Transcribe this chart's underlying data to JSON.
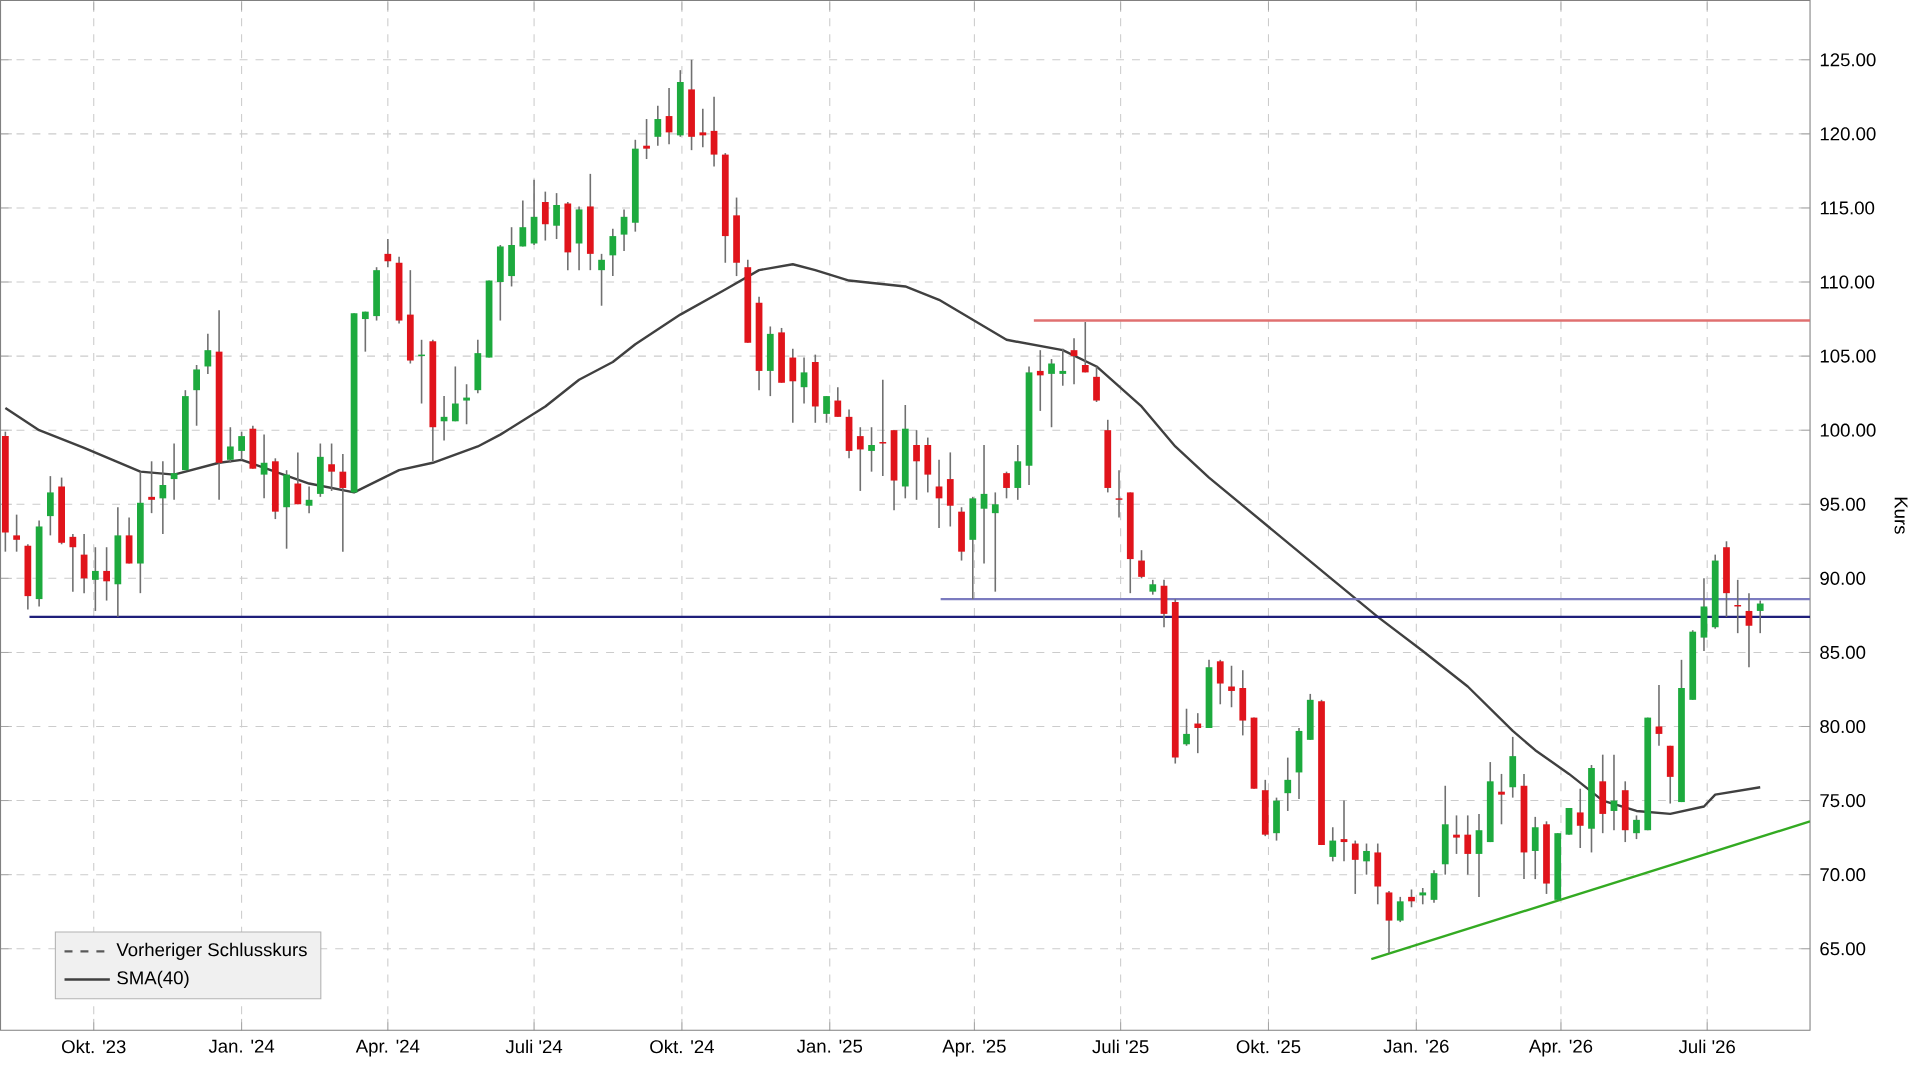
{
  "chart_data": {
    "type": "candlestick",
    "x": [
      "2023-08-07",
      "2023-08-14",
      "2023-08-21",
      "2023-08-28",
      "2023-09-04",
      "2023-09-11",
      "2023-09-18",
      "2023-09-25",
      "2023-10-02",
      "2023-10-09",
      "2023-10-16",
      "2023-10-23",
      "2023-10-30",
      "2023-11-06",
      "2023-11-13",
      "2023-11-20",
      "2023-11-27",
      "2023-12-04",
      "2023-12-11",
      "2023-12-18",
      "2023-12-25",
      "2024-01-01",
      "2024-01-08",
      "2024-01-15",
      "2024-01-22",
      "2024-01-29",
      "2024-02-05",
      "2024-02-12",
      "2024-02-19",
      "2024-02-26",
      "2024-03-04",
      "2024-03-11",
      "2024-03-18",
      "2024-03-25",
      "2024-04-01",
      "2024-04-08",
      "2024-04-15",
      "2024-04-22",
      "2024-04-29",
      "2024-05-06",
      "2024-05-13",
      "2024-05-20",
      "2024-05-27",
      "2024-06-03",
      "2024-06-10",
      "2024-06-17",
      "2024-06-24",
      "2024-07-01",
      "2024-07-08",
      "2024-07-15",
      "2024-07-22",
      "2024-07-29",
      "2024-08-05",
      "2024-08-12",
      "2024-08-19",
      "2024-08-26",
      "2024-09-02",
      "2024-09-09",
      "2024-09-16",
      "2024-09-23",
      "2024-09-30",
      "2024-10-07",
      "2024-10-14",
      "2024-10-21",
      "2024-10-28",
      "2024-11-04",
      "2024-11-11",
      "2024-11-18",
      "2024-11-25",
      "2024-12-02",
      "2024-12-09",
      "2024-12-16",
      "2024-12-23",
      "2024-12-30",
      "2025-01-06",
      "2025-01-13",
      "2025-01-20",
      "2025-01-27",
      "2025-02-03",
      "2025-02-10",
      "2025-02-17",
      "2025-02-24",
      "2025-03-03",
      "2025-03-10",
      "2025-03-17",
      "2025-03-24",
      "2025-03-31",
      "2025-04-07",
      "2025-04-14",
      "2025-04-21",
      "2025-04-28",
      "2025-05-05",
      "2025-05-12",
      "2025-05-19",
      "2025-05-26",
      "2025-06-02",
      "2025-06-09",
      "2025-06-16",
      "2025-06-23",
      "2025-06-30",
      "2025-07-07",
      "2025-07-14",
      "2025-07-21",
      "2025-07-28",
      "2025-08-04",
      "2025-08-11",
      "2025-08-18",
      "2025-08-25",
      "2025-09-01",
      "2025-09-08",
      "2025-09-15",
      "2025-09-22",
      "2025-09-29",
      "2025-10-06",
      "2025-10-13",
      "2025-10-20",
      "2025-10-27",
      "2025-11-03",
      "2025-11-10",
      "2025-11-17",
      "2025-11-24",
      "2025-12-01",
      "2025-12-08",
      "2025-12-15",
      "2025-12-22",
      "2025-12-29",
      "2026-01-05",
      "2026-01-12",
      "2026-01-19",
      "2026-01-26",
      "2026-02-02",
      "2026-02-09",
      "2026-02-16",
      "2026-02-23",
      "2026-03-02",
      "2026-03-09",
      "2026-03-16",
      "2026-03-23",
      "2026-03-30",
      "2026-04-06",
      "2026-04-13",
      "2026-04-20",
      "2026-04-27",
      "2026-05-04",
      "2026-05-11",
      "2026-05-18",
      "2026-05-25",
      "2026-06-01",
      "2026-06-08",
      "2026-06-15",
      "2026-06-22",
      "2026-06-29",
      "2026-07-06",
      "2026-07-13",
      "2026-07-20",
      "2026-07-27",
      "2026-08-03"
    ],
    "ohlc": [
      [
        99.6,
        99.9,
        91.8,
        93.1
      ],
      [
        92.9,
        94.3,
        91.8,
        92.6
      ],
      [
        92.2,
        92.3,
        87.9,
        88.8
      ],
      [
        88.6,
        93.9,
        88.1,
        93.5
      ],
      [
        94.2,
        96.9,
        92.9,
        95.8
      ],
      [
        96.2,
        96.8,
        92.3,
        92.4
      ],
      [
        92.8,
        93.0,
        89.1,
        92.1
      ],
      [
        91.6,
        93.0,
        89.0,
        90.0
      ],
      [
        89.9,
        92.1,
        87.8,
        90.5
      ],
      [
        90.5,
        92.1,
        88.5,
        89.8
      ],
      [
        89.6,
        94.8,
        87.4,
        92.9
      ],
      [
        92.9,
        94.1,
        91.0,
        91.0
      ],
      [
        91.0,
        97.2,
        89.0,
        95.1
      ],
      [
        95.5,
        97.9,
        94.4,
        95.3
      ],
      [
        95.4,
        97.9,
        93.0,
        96.3
      ],
      [
        96.7,
        99.1,
        95.3,
        97.1
      ],
      [
        97.3,
        102.7,
        97.3,
        102.3
      ],
      [
        102.7,
        104.4,
        100.3,
        104.1
      ],
      [
        104.3,
        106.5,
        103.8,
        105.4
      ],
      [
        105.3,
        108.1,
        95.3,
        97.8
      ],
      [
        98.0,
        100.2,
        97.8,
        98.9
      ],
      [
        98.6,
        99.9,
        98.0,
        99.6
      ],
      [
        100.1,
        100.3,
        97.4,
        97.4
      ],
      [
        97.0,
        99.7,
        95.4,
        97.8
      ],
      [
        97.9,
        98.1,
        94.0,
        94.5
      ],
      [
        94.8,
        97.3,
        92.0,
        97.0
      ],
      [
        96.4,
        98.5,
        95.0,
        95.0
      ],
      [
        94.9,
        96.2,
        94.4,
        95.3
      ],
      [
        95.7,
        99.1,
        95.5,
        98.2
      ],
      [
        97.7,
        99.1,
        95.9,
        97.2
      ],
      [
        97.2,
        98.4,
        91.8,
        96.1
      ],
      [
        95.8,
        107.9,
        95.8,
        107.9
      ],
      [
        107.5,
        108.0,
        105.3,
        108.0
      ],
      [
        107.7,
        111.0,
        107.4,
        110.8
      ],
      [
        111.9,
        112.9,
        111.0,
        111.4
      ],
      [
        111.3,
        111.7,
        107.2,
        107.4
      ],
      [
        107.8,
        110.8,
        104.5,
        104.7
      ],
      [
        105.0,
        106.1,
        101.8,
        105.1
      ],
      [
        106.0,
        106.1,
        97.9,
        100.2
      ],
      [
        100.6,
        102.3,
        99.3,
        100.9
      ],
      [
        100.6,
        104.3,
        100.6,
        101.8
      ],
      [
        102.0,
        103.1,
        100.4,
        102.2
      ],
      [
        102.7,
        106.1,
        102.5,
        105.2
      ],
      [
        104.9,
        110.1,
        104.9,
        110.1
      ],
      [
        110.0,
        112.5,
        107.4,
        112.4
      ],
      [
        110.4,
        113.7,
        109.7,
        112.5
      ],
      [
        112.4,
        115.5,
        112.4,
        113.7
      ],
      [
        112.6,
        116.9,
        112.5,
        114.4
      ],
      [
        115.4,
        116.1,
        112.8,
        113.9
      ],
      [
        113.8,
        116.0,
        112.9,
        115.2
      ],
      [
        115.3,
        115.4,
        110.8,
        112.0
      ],
      [
        112.6,
        115.1,
        110.8,
        114.9
      ],
      [
        115.1,
        117.3,
        110.8,
        111.9
      ],
      [
        110.8,
        111.9,
        108.4,
        111.5
      ],
      [
        111.8,
        113.6,
        110.4,
        113.1
      ],
      [
        113.2,
        114.9,
        112.1,
        114.4
      ],
      [
        114.0,
        119.6,
        113.4,
        119.0
      ],
      [
        119.2,
        121.0,
        118.3,
        119.0
      ],
      [
        119.8,
        121.9,
        119.2,
        121.0
      ],
      [
        121.2,
        123.1,
        119.3,
        120.1
      ],
      [
        119.9,
        124.3,
        119.8,
        123.5
      ],
      [
        123.0,
        125.0,
        118.9,
        119.8
      ],
      [
        120.1,
        121.7,
        119.1,
        119.9
      ],
      [
        120.2,
        122.5,
        117.8,
        118.6
      ],
      [
        118.6,
        118.7,
        111.3,
        113.1
      ],
      [
        114.5,
        115.7,
        110.4,
        111.3
      ],
      [
        111.0,
        111.5,
        105.9,
        105.9
      ],
      [
        108.6,
        109.0,
        102.7,
        104.0
      ],
      [
        104.0,
        107.0,
        102.3,
        106.5
      ],
      [
        106.6,
        106.9,
        103.2,
        103.2
      ],
      [
        104.9,
        105.5,
        100.5,
        103.3
      ],
      [
        102.9,
        104.9,
        101.8,
        103.9
      ],
      [
        104.6,
        105.1,
        100.5,
        101.6
      ],
      [
        101.1,
        102.3,
        100.5,
        102.3
      ],
      [
        102.0,
        102.9,
        100.9,
        100.9
      ],
      [
        100.9,
        101.4,
        98.1,
        98.6
      ],
      [
        99.6,
        100.2,
        95.9,
        98.7
      ],
      [
        98.6,
        100.2,
        97.2,
        99.0
      ],
      [
        99.2,
        103.4,
        96.9,
        99.1
      ],
      [
        100.0,
        100.0,
        94.6,
        96.6
      ],
      [
        96.2,
        101.7,
        95.4,
        100.1
      ],
      [
        99.0,
        100.0,
        95.3,
        97.9
      ],
      [
        99.0,
        99.5,
        95.8,
        97.0
      ],
      [
        96.2,
        98.0,
        93.4,
        95.4
      ],
      [
        96.7,
        98.5,
        93.5,
        94.9
      ],
      [
        94.5,
        94.8,
        91.2,
        91.8
      ],
      [
        92.6,
        95.5,
        88.6,
        95.4
      ],
      [
        94.7,
        99.0,
        91.0,
        95.7
      ],
      [
        94.4,
        95.8,
        89.1,
        95.0
      ],
      [
        97.1,
        97.2,
        95.4,
        96.1
      ],
      [
        96.1,
        99.0,
        95.3,
        97.9
      ],
      [
        97.6,
        104.3,
        96.3,
        103.9
      ],
      [
        104.0,
        105.4,
        101.3,
        103.7
      ],
      [
        103.8,
        104.8,
        100.2,
        104.5
      ],
      [
        103.8,
        105.5,
        103.0,
        104.0
      ],
      [
        105.4,
        106.2,
        103.1,
        105.0
      ],
      [
        104.4,
        107.3,
        103.9,
        103.9
      ],
      [
        103.6,
        104.3,
        101.9,
        102.0
      ],
      [
        100.0,
        100.7,
        95.8,
        96.1
      ],
      [
        95.4,
        97.3,
        94.1,
        95.3
      ],
      [
        95.8,
        95.8,
        89.0,
        91.3
      ],
      [
        91.2,
        91.9,
        90.0,
        90.1
      ],
      [
        89.1,
        89.9,
        88.9,
        89.6
      ],
      [
        89.5,
        89.9,
        86.7,
        87.6
      ],
      [
        88.4,
        88.6,
        77.5,
        77.9
      ],
      [
        78.8,
        81.2,
        78.7,
        79.5
      ],
      [
        80.2,
        80.9,
        78.2,
        79.9
      ],
      [
        79.9,
        84.5,
        79.9,
        84.0
      ],
      [
        84.4,
        84.5,
        81.5,
        82.9
      ],
      [
        82.7,
        84.1,
        81.3,
        82.4
      ],
      [
        82.6,
        83.8,
        79.4,
        80.4
      ],
      [
        80.6,
        80.6,
        75.8,
        75.8
      ],
      [
        75.7,
        76.4,
        72.6,
        72.7
      ],
      [
        72.8,
        75.2,
        72.3,
        75.0
      ],
      [
        75.5,
        77.9,
        74.3,
        76.4
      ],
      [
        76.9,
        79.9,
        75.1,
        79.7
      ],
      [
        79.1,
        82.2,
        79.1,
        81.8
      ],
      [
        81.7,
        81.8,
        72.0,
        72.0
      ],
      [
        71.2,
        73.2,
        70.9,
        72.3
      ],
      [
        72.4,
        75.0,
        70.9,
        72.2
      ],
      [
        72.1,
        72.3,
        68.7,
        71.0
      ],
      [
        70.9,
        72.1,
        70.0,
        71.6
      ],
      [
        71.5,
        72.1,
        68.0,
        69.2
      ],
      [
        68.8,
        68.9,
        64.7,
        66.9
      ],
      [
        66.9,
        68.5,
        66.8,
        68.2
      ],
      [
        68.5,
        69.0,
        67.8,
        68.2
      ],
      [
        68.6,
        69.1,
        68.0,
        68.8
      ],
      [
        68.3,
        70.3,
        68.1,
        70.1
      ],
      [
        70.7,
        76.0,
        70.0,
        73.4
      ],
      [
        72.7,
        74.0,
        71.4,
        72.5
      ],
      [
        72.7,
        74.0,
        70.0,
        71.4
      ],
      [
        71.4,
        74.1,
        68.5,
        73.0
      ],
      [
        72.2,
        77.6,
        72.2,
        76.3
      ],
      [
        75.6,
        76.8,
        73.4,
        75.4
      ],
      [
        75.9,
        79.3,
        75.2,
        78.0
      ],
      [
        76.0,
        76.8,
        69.7,
        71.5
      ],
      [
        71.6,
        73.9,
        69.7,
        73.2
      ],
      [
        73.4,
        73.6,
        68.7,
        69.4
      ],
      [
        68.3,
        72.8,
        68.3,
        72.8
      ],
      [
        72.7,
        74.5,
        72.7,
        74.5
      ],
      [
        74.2,
        75.8,
        71.8,
        73.3
      ],
      [
        73.1,
        77.4,
        71.5,
        77.2
      ],
      [
        76.3,
        78.1,
        72.8,
        74.1
      ],
      [
        74.3,
        78.1,
        73.0,
        75.0
      ],
      [
        75.7,
        76.3,
        72.2,
        73.0
      ],
      [
        72.8,
        74.0,
        72.4,
        73.7
      ],
      [
        73.0,
        80.6,
        73.0,
        80.6
      ],
      [
        80.0,
        82.8,
        78.7,
        79.5
      ],
      [
        78.7,
        78.7,
        74.8,
        76.6
      ],
      [
        74.9,
        84.5,
        74.9,
        82.6
      ],
      [
        81.8,
        86.5,
        81.8,
        86.4
      ],
      [
        86.0,
        90.0,
        85.1,
        88.1
      ],
      [
        86.7,
        91.6,
        86.6,
        91.2
      ],
      [
        92.1,
        92.5,
        87.4,
        89.0
      ],
      [
        88.2,
        89.9,
        86.3,
        88.1
      ],
      [
        87.8,
        89.0,
        84.0,
        86.8
      ],
      [
        87.8,
        88.5,
        86.3,
        88.3
      ]
    ],
    "series": [
      {
        "name": "SMA(40)",
        "type": "line",
        "color": "#404040",
        "x": [
          "2023-08-07",
          "2023-08-28",
          "2023-09-25",
          "2023-10-30",
          "2023-11-20",
          "2023-12-18",
          "2024-01-01",
          "2024-02-12",
          "2024-03-11",
          "2024-04-08",
          "2024-04-29",
          "2024-05-27",
          "2024-06-10",
          "2024-07-08",
          "2024-07-29",
          "2024-08-19",
          "2024-09-02",
          "2024-09-30",
          "2024-10-28",
          "2024-11-18",
          "2024-12-09",
          "2024-12-23",
          "2025-01-13",
          "2025-02-17",
          "2025-03-10",
          "2025-04-21",
          "2025-05-26",
          "2025-06-16",
          "2025-07-14",
          "2025-08-04",
          "2025-08-25",
          "2025-11-10",
          "2025-12-08",
          "2026-01-05",
          "2026-02-02",
          "2026-03-02",
          "2026-03-16",
          "2026-04-06",
          "2026-04-27",
          "2026-05-18",
          "2026-06-08",
          "2026-06-29",
          "2026-07-06",
          "2026-08-03"
        ],
        "values": [
          101.5,
          100.0,
          98.8,
          97.2,
          97.0,
          97.8,
          98.0,
          96.4,
          95.8,
          97.3,
          97.8,
          98.9,
          99.7,
          101.6,
          103.4,
          104.6,
          105.8,
          107.8,
          109.5,
          110.8,
          111.2,
          110.8,
          110.1,
          109.7,
          108.8,
          106.1,
          105.4,
          104.3,
          101.6,
          98.9,
          96.8,
          89.9,
          87.4,
          85.1,
          82.7,
          79.7,
          78.4,
          76.8,
          75.0,
          74.3,
          74.1,
          74.6,
          75.4,
          75.9
        ]
      },
      {
        "type": "line",
        "color": "#1f1f7a",
        "x": [
          "2023-08-22",
          "2026-09-03"
        ],
        "values": [
          87.4,
          87.4
        ]
      },
      {
        "type": "line",
        "color": "#7b7bbf",
        "x": [
          "2025-03-11",
          "2026-09-03"
        ],
        "values": [
          88.6,
          88.6
        ]
      },
      {
        "type": "line",
        "color": "#e07070",
        "x": [
          "2025-05-08",
          "2026-09-03"
        ],
        "values": [
          107.4,
          107.4
        ]
      },
      {
        "type": "line",
        "color": "#33aa22",
        "x": [
          "2025-12-04",
          "2026-09-03"
        ],
        "values": [
          64.3,
          73.6
        ]
      }
    ],
    "ylabel": "Kurs",
    "annotations": [
      "Vorheriger Schlusskurs"
    ],
    "xlim": [
      "2023-08-04",
      "2026-09-03"
    ],
    "xticks": [
      {
        "value": "2023-10-01",
        "label": "Okt. '23"
      },
      {
        "value": "2024-01-01",
        "label": "Jan. '24"
      },
      {
        "value": "2024-04-01",
        "label": "Apr. '24"
      },
      {
        "value": "2024-07-01",
        "label": "Juli '24"
      },
      {
        "value": "2024-10-01",
        "label": "Okt. '24"
      },
      {
        "value": "2025-01-01",
        "label": "Jan. '25"
      },
      {
        "value": "2025-04-01",
        "label": "Apr. '25"
      },
      {
        "value": "2025-07-01",
        "label": "Juli '25"
      },
      {
        "value": "2025-10-01",
        "label": "Okt. '25"
      },
      {
        "value": "2026-01-01",
        "label": "Jan. '26"
      },
      {
        "value": "2026-04-01",
        "label": "Apr. '26"
      },
      {
        "value": "2026-07-01",
        "label": "Juli '26"
      }
    ],
    "ylim": [
      59.5,
      129
    ],
    "yticks": [
      {
        "value": 65,
        "label": "65.00"
      },
      {
        "value": 70,
        "label": "70.00"
      },
      {
        "value": 75,
        "label": "75.00"
      },
      {
        "value": 80,
        "label": "80.00"
      },
      {
        "value": 85,
        "label": "85.00"
      },
      {
        "value": 90,
        "label": "90.00"
      },
      {
        "value": 95,
        "label": "95.00"
      },
      {
        "value": 100,
        "label": "100.00"
      },
      {
        "value": 105,
        "label": "105.00"
      },
      {
        "value": 110,
        "label": "110.00"
      },
      {
        "value": 115,
        "label": "115.00"
      },
      {
        "value": 120,
        "label": "120.00"
      },
      {
        "value": 125,
        "label": "125.00"
      }
    ],
    "grid": true,
    "legend": "bottom left",
    "marker": "none"
  }
}
